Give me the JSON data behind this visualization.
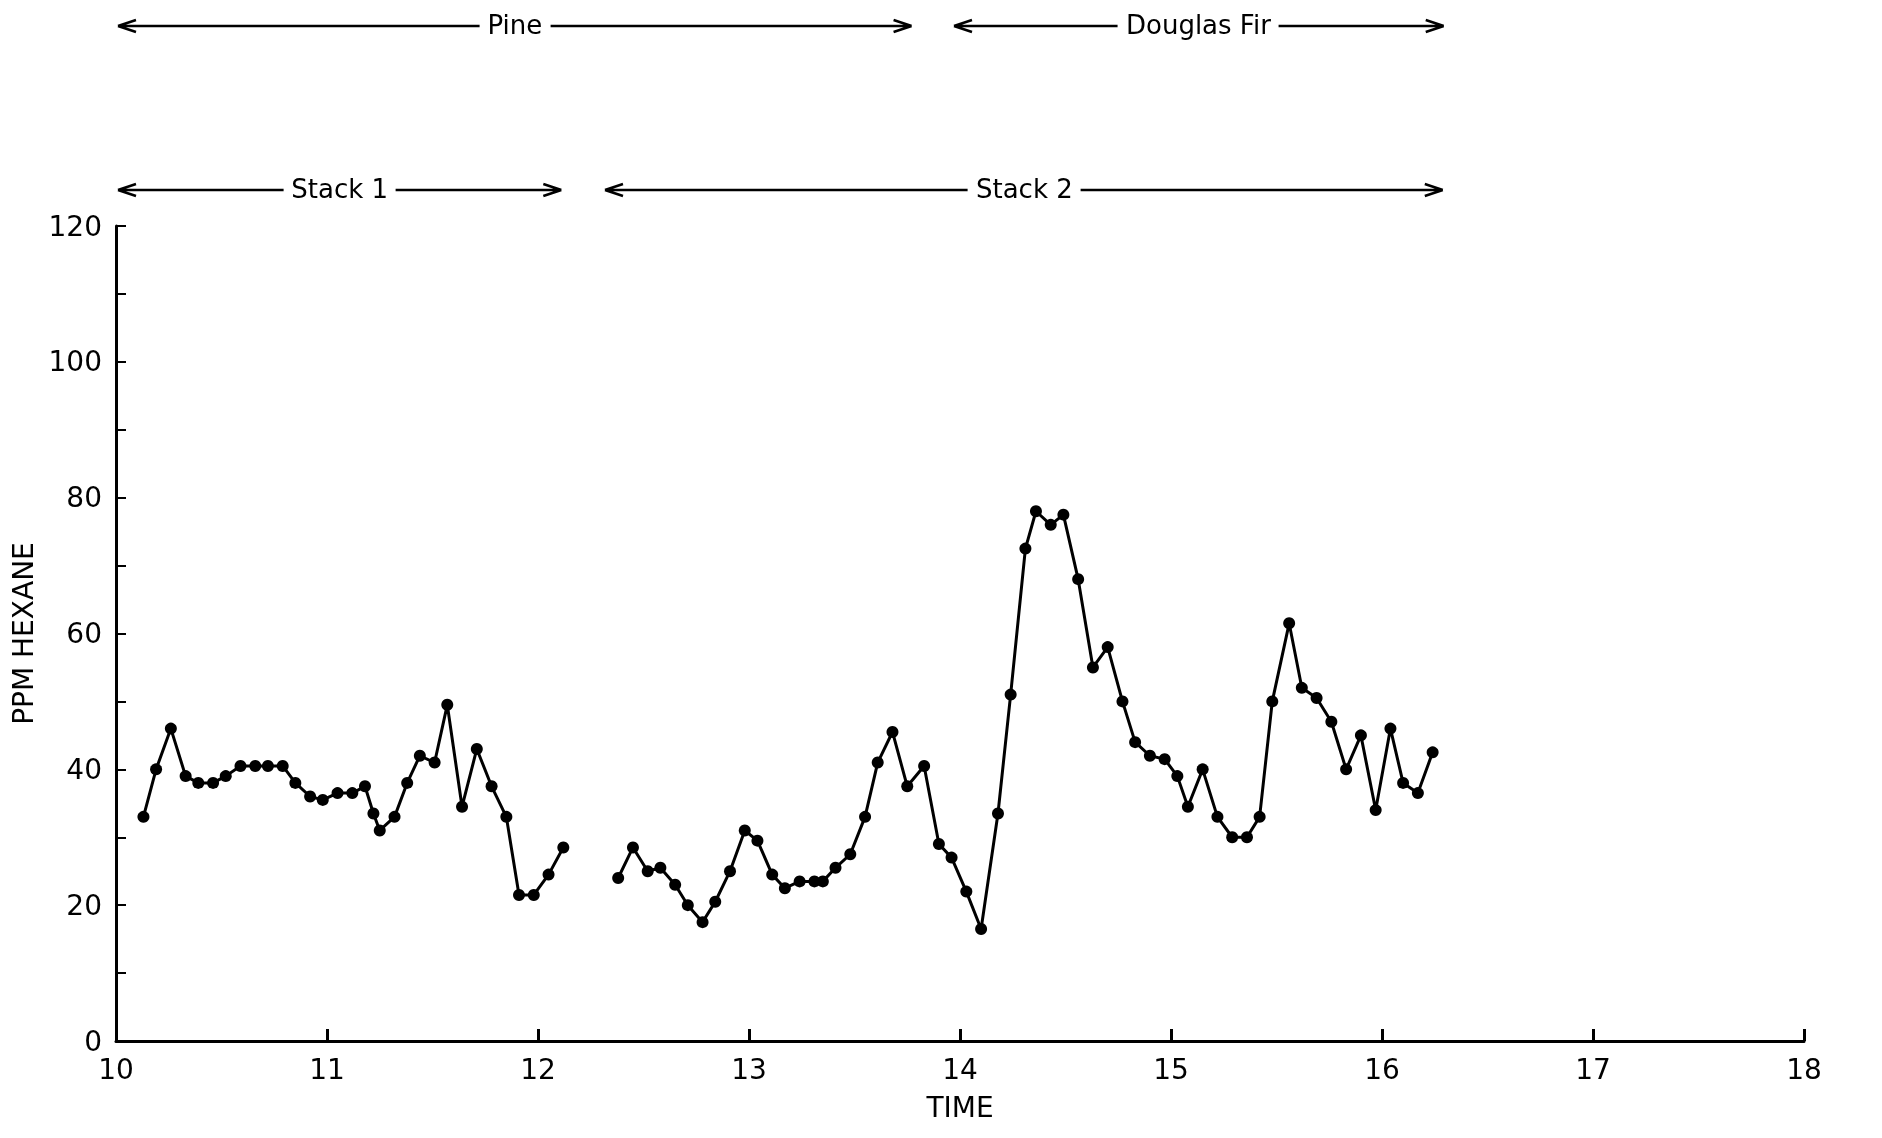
{
  "chart_data": {
    "type": "line",
    "xlabel": "TIME",
    "ylabel": "PPM HEXANE",
    "xlim": [
      10,
      18
    ],
    "xticks": [
      10,
      11,
      12,
      13,
      14,
      15,
      16,
      17,
      18
    ],
    "ylim": [
      0,
      120
    ],
    "yticks": [
      0,
      {
        "value": 10,
        "label": null
      },
      20,
      {
        "value": 30,
        "label": null
      },
      40,
      {
        "value": 50,
        "label": null
      },
      60,
      {
        "value": 70,
        "label": null
      },
      80,
      {
        "value": 90,
        "label": null
      },
      100,
      {
        "value": 110,
        "label": null
      },
      120
    ],
    "grid": false,
    "marker": "circle",
    "line_style": "solid",
    "annotations": [
      "Pine",
      "Douglas Fir",
      "Stack 1",
      "Stack 2"
    ],
    "series": [
      {
        "color": "#000000",
        "x": [
          10.13,
          10.19,
          10.26,
          10.33,
          10.39,
          10.46,
          10.52,
          10.59,
          10.66,
          10.72,
          10.79,
          10.85,
          10.92,
          10.98,
          11.05,
          11.12,
          11.18,
          11.22,
          11.25,
          11.32,
          11.38,
          11.44,
          11.51,
          11.57,
          11.64,
          11.71,
          11.78,
          11.85,
          11.91,
          11.98,
          12.05,
          12.12
        ],
        "values": [
          33,
          40,
          46,
          39,
          38,
          38,
          39,
          40.5,
          40.5,
          40.5,
          40.5,
          38,
          36,
          35.5,
          36.5,
          36.5,
          37.5,
          33.5,
          31,
          33,
          38,
          42,
          41,
          49.5,
          34.5,
          43,
          37.5,
          33,
          21.5,
          21.5,
          24.5,
          28.5
        ]
      },
      {
        "color": "#000000",
        "x": [
          12.38,
          12.45,
          12.52,
          12.58,
          12.65,
          12.71,
          12.78,
          12.84,
          12.91,
          12.98,
          13.04,
          13.11,
          13.17,
          13.24,
          13.31,
          13.35,
          13.41,
          13.48,
          13.55,
          13.61,
          13.68,
          13.75,
          13.83,
          13.9,
          13.96,
          14.03,
          14.1,
          14.18,
          14.24,
          14.31,
          14.36,
          14.43,
          14.49,
          14.56,
          14.63,
          14.7,
          14.77,
          14.83,
          14.9,
          14.97,
          15.03,
          15.08,
          15.15,
          15.22,
          15.29,
          15.36,
          15.42,
          15.48,
          15.56,
          15.62,
          15.69,
          15.76,
          15.83,
          15.9,
          15.97,
          16.04,
          16.1,
          16.17,
          16.24
        ],
        "values": [
          24,
          28.5,
          25,
          25.5,
          23,
          20,
          17.5,
          20.5,
          25,
          31,
          29.5,
          24.5,
          22.5,
          23.5,
          23.5,
          23.5,
          25.5,
          27.5,
          33,
          41,
          45.5,
          37.5,
          40.5,
          29,
          27,
          22,
          16.5,
          33.5,
          51,
          72.5,
          78,
          76,
          77.5,
          68,
          55,
          58,
          50,
          44,
          42,
          41.5,
          39,
          34.5,
          40,
          33,
          30,
          30,
          33,
          50,
          61.5,
          52,
          50.5,
          47,
          40,
          45,
          34,
          46,
          38,
          36.5,
          42.5
        ]
      }
    ]
  }
}
